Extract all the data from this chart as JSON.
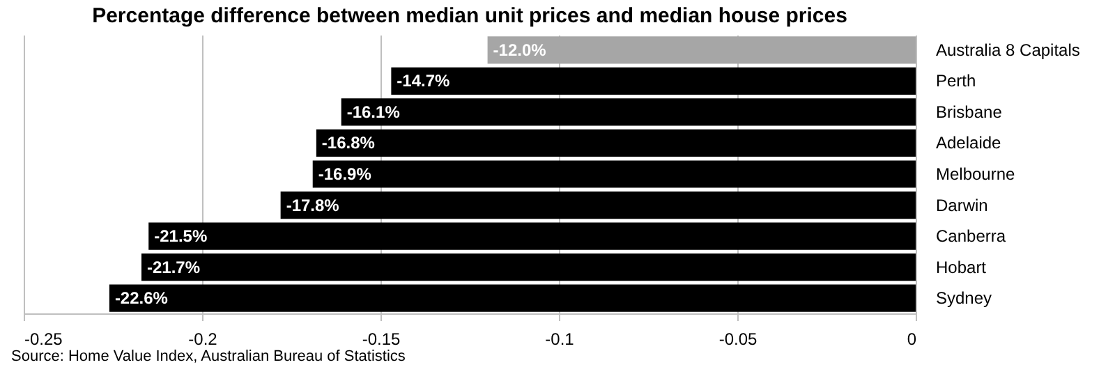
{
  "chart_data": {
    "type": "bar",
    "orientation": "horizontal",
    "title": "Percentage difference between median unit prices and median house prices",
    "categories": [
      "Australia  8 Capitals",
      "Perth",
      "Brisbane",
      "Adelaide",
      "Melbourne",
      "Darwin",
      "Canberra",
      "Hobart",
      "Sydney"
    ],
    "values": [
      -0.12,
      -0.147,
      -0.161,
      -0.168,
      -0.169,
      -0.178,
      -0.215,
      -0.217,
      -0.226
    ],
    "value_labels": [
      "-12.0%",
      "-14.7%",
      "-16.1%",
      "-16.8%",
      "-16.9%",
      "-17.8%",
      "-21.5%",
      "-21.7%",
      "-22.6%"
    ],
    "colors": [
      "#a6a6a6",
      "#000000",
      "#000000",
      "#000000",
      "#000000",
      "#000000",
      "#000000",
      "#000000",
      "#000000"
    ],
    "xlim": [
      -0.25,
      0
    ],
    "xticks": [
      -0.25,
      -0.2,
      -0.15,
      -0.1,
      -0.05,
      0
    ],
    "grid": "x",
    "annotations": [
      "Source:  Home Value Index, Australian Bureau of Statistics"
    ]
  }
}
